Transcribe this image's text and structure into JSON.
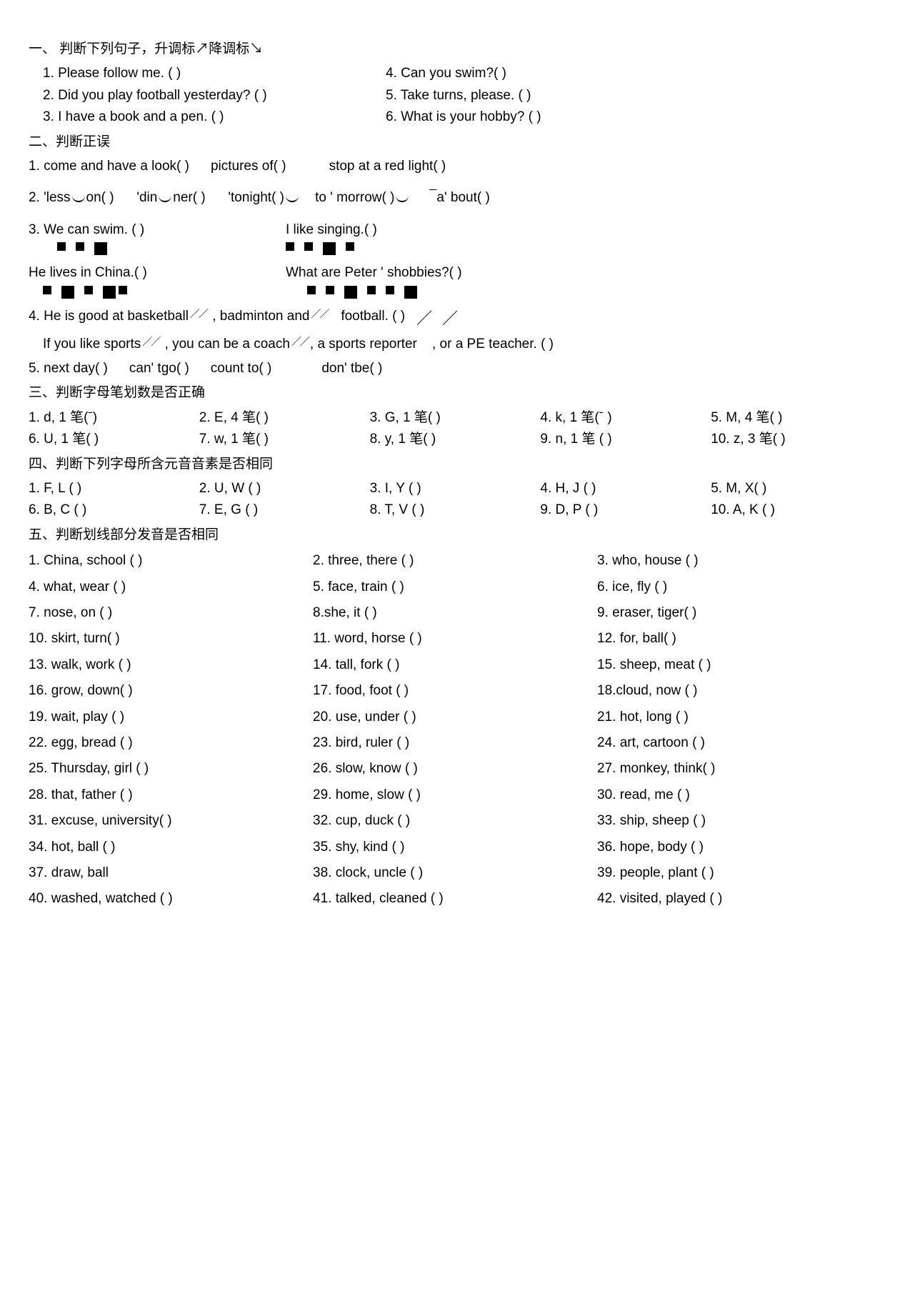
{
  "s1": {
    "title": "一、 判断下列句子，升调标↗降调标↘",
    "q1": "1.  Please follow me. (        )",
    "q4": "4.    Can you swim?(    )",
    "q2": "2.  Did you play football yesterday? (           )",
    "q5": "5.    Take turns, please. (        )",
    "q3": "3.  I have a book and a pen. (         )",
    "q6": "6. What is your hobby? (         )"
  },
  "s2": {
    "title": "二、判断正误",
    "l1a": "1. come and have a look(        )",
    "l1b": "pictures of(        )",
    "l1c": "stop at a red light(          )",
    "l2a": "2.  'less",
    "l2b": "on(   )",
    "l2c": "'din",
    "l2d": "ner(    )",
    "l2e": "'tonight(    )",
    "l2f": "to ' morrow(   )",
    "l2g": "a'  bout(    )",
    "l3a": "3. We can swim. (       )",
    "l3b": "I like singing.(       )",
    "l3c": "He lives in China.(      )",
    "l3d": "What are Peter    ' shobbies?(      )",
    "l4a": "4. He is good at basketball",
    "l4b": ", badminton and",
    "l4c": "football. (      )",
    "l4d": "If you like sports",
    "l4e": ", you can be a coach",
    "l4f": ", a sports reporter",
    "l4g": ", or a PE teacher. (      )",
    "l5a": "5. next day(       )",
    "l5b": "can' tgo(       )",
    "l5c": "count to(        )",
    "l5d": "don' tbe(        )"
  },
  "s3": {
    "title": "三、判断字母笔划数是否正确",
    "r1": [
      "1. d, 1 笔(ˉ)",
      "2. E, 4  笔(    )",
      "3. G, 1 笔(     )",
      "4. k, 1  笔(ˉ )",
      "5. M, 4 笔(      )"
    ],
    "r2": [
      "6. U, 1 笔(   )",
      "7. w, 1 笔(    )",
      "8. y, 1 笔(     )",
      "9. n, 1 笔 (     )",
      "10. z, 3  笔(     )"
    ]
  },
  "s4": {
    "title": "四、判断下列字母所含元音音素是否相同",
    "r1": [
      "1. F, L (      )",
      "2. U, W (      )",
      "3. I, Y (      )",
      "4. H, J (      )",
      "5. M, X(      )"
    ],
    "r2": [
      "6. B, C (      )",
      "7. E, G (    )",
      "8. T, V (      )",
      "9. D, P (    )",
      "10. A, K (      )"
    ]
  },
  "s5": {
    "title": "五、判断划线部分发音是否相同",
    "rows": [
      [
        "1. China, school (      )",
        "2. three, there (         )",
        "3. who, house (      )"
      ],
      [
        "4. what, wear (        )",
        "5. face, train (        )",
        "6. ice, fly (        )"
      ],
      [
        "7. nose, on (        )",
        "8.she, it (        )",
        "9. eraser, tiger(         )"
      ],
      [
        "10. skirt, turn(         )",
        "11. word, horse (        )",
        "12. for, ball(        )"
      ],
      [
        "13. walk, work (       )",
        "14. tall, fork (        )",
        "15. sheep, meat (        )"
      ],
      [
        "16. grow, down(       )",
        "17. food, foot (        )",
        "18.cloud, now (       )"
      ],
      [
        "19. wait, play (        )",
        "20. use, under (       )",
        "21. hot, long (        )"
      ],
      [
        "22. egg, bread (        )",
        "23. bird, ruler (         )",
        "24. art, cartoon (        )"
      ],
      [
        "25. Thursday, girl (        )",
        "26. slow, know (         )",
        "27. monkey, think(        )"
      ],
      [
        "28. that, father (         )",
        "29. home, slow (         )",
        "30. read, me (         )"
      ],
      [
        "31. excuse, university(         )",
        "32. cup, duck (         )",
        "33. ship, sheep (        )"
      ],
      [
        "34. hot, ball (        )",
        "35. shy, kind (        )",
        "36. hope, body (         )"
      ],
      [
        "37. draw, ball",
        "38. clock, uncle (        )",
        "39. people, plant (        )"
      ],
      [
        "40. washed, watched (        )",
        "41. talked, cleaned (        )",
        "42. visited, played (        )"
      ]
    ]
  }
}
